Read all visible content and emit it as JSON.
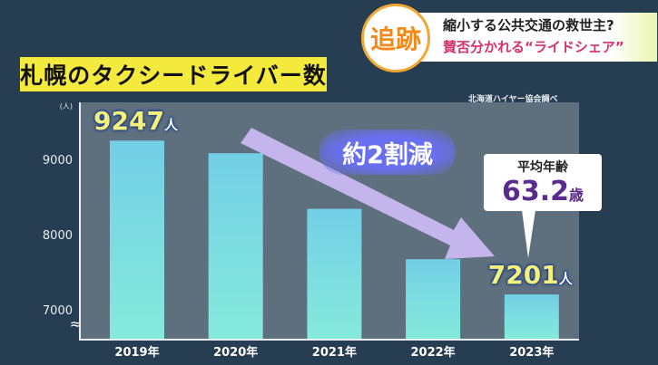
{
  "header": {
    "logo_text": "追跡",
    "headline": "縮小する公共交通の救世主?",
    "subheadline": "賛否分かれる“ライドシェア”"
  },
  "chart_data": {
    "type": "bar",
    "title": "札幌のタクシードライバー数",
    "source": "北海道ハイヤー協会調べ",
    "ylabel": "(人)",
    "categories": [
      "2019年",
      "2020年",
      "2021年",
      "2022年",
      "2023年"
    ],
    "values": [
      9247,
      9080,
      8340,
      7670,
      7201
    ],
    "ylim": [
      6600,
      9700
    ],
    "yticks": [
      "7000",
      "8000",
      "9000"
    ],
    "axis_break": "≈",
    "data_labels": [
      {
        "index": 0,
        "value": "9247",
        "unit": "人"
      },
      {
        "index": 4,
        "value": "7201",
        "unit": "人"
      }
    ],
    "annotation": "約2割減",
    "callout": {
      "label": "平均年齢",
      "value": "63.2",
      "unit": "歳"
    },
    "colors": {
      "bar_top": "#72cfe6",
      "bar_bottom": "#86eadb",
      "plot_bg": "#5e6f7d",
      "arrow": "#c9b9f2"
    }
  }
}
